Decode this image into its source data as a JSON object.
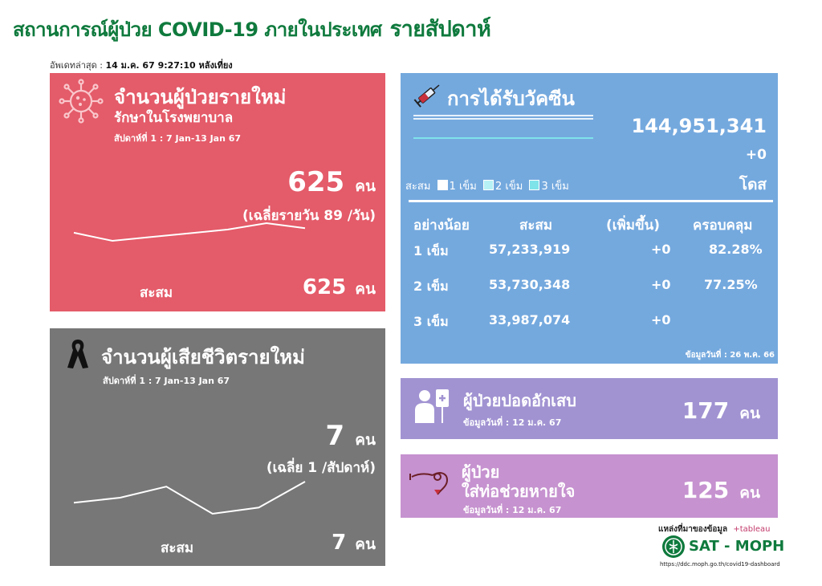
{
  "header": {
    "title": "สถานการณ์ผู้ป่วย COVID-19 ภายในประเทศ",
    "title_suffix": "รายสัปดาห์",
    "updated_label": "อัพเดทล่าสุด :",
    "updated_value": "14 ม.ค. 67 9:27:10 หลังเที่ยง"
  },
  "new_cases": {
    "title": "จำนวนผู้ป่วยรายใหม่",
    "subtitle": "รักษาในโรงพยาบาล",
    "week": "สัปดาห์ที่ 1 : 7 Jan-13 Jan 67",
    "count": "625",
    "unit": "คน",
    "average": "(เฉลี่ยรายวัน 89 /วัน)",
    "cumulative_label": "สะสม",
    "cumulative": "625",
    "cumulative_unit": "คน",
    "trend": [
      0.62,
      0.3,
      0.45,
      0.6,
      0.75,
      1.0,
      0.8
    ]
  },
  "deaths": {
    "title": "จำนวนผู้เสียชีวิตรายใหม่",
    "week": "สัปดาห์ที่ 1 : 7 Jan-13 Jan 67",
    "count": "7",
    "unit": "คน",
    "average": "(เฉลี่ย 1 /สัปดาห์)",
    "cumulative_label": "สะสม",
    "cumulative": "7",
    "cumulative_unit": "คน",
    "trend": [
      0.0,
      0.2,
      0.65,
      -0.45,
      -0.2,
      0.85
    ]
  },
  "vaccine": {
    "title": "การได้รับวัคซีน",
    "total": "144,951,341",
    "delta": "+0",
    "unit": "โดส",
    "legend_label": "สะสม",
    "legend": [
      {
        "label": "1 เข็ม",
        "color": "#ffffff"
      },
      {
        "label": "2 เข็ม",
        "color": "#b6f1f5"
      },
      {
        "label": "3 เข็ม",
        "color": "#7fe3ea"
      }
    ],
    "columns": [
      "อย่างน้อย",
      "สะสม",
      "(เพิ่มขึ้น)",
      "ครอบคลุม"
    ],
    "rows": [
      {
        "dose": "1 เข็ม",
        "total": "57,233,919",
        "delta": "+0",
        "coverage": "82.28%"
      },
      {
        "dose": "2 เข็ม",
        "total": "53,730,348",
        "delta": "+0",
        "coverage": "77.25%"
      },
      {
        "dose": "3 เข็ม",
        "total": "33,987,074",
        "delta": "+0",
        "coverage": ""
      }
    ],
    "data_date": "ข้อมูลวันที่ : 26 พ.ค. 66"
  },
  "pneumonia": {
    "title": "ผู้ป่วยปอดอักเสบ",
    "data_date": "ข้อมูลวันที่ : 12 ม.ค. 67",
    "count": "177",
    "unit": "คน"
  },
  "ventilator": {
    "title_1": "ผู้ป่วย",
    "title_2": "ใส่ท่อช่วยหายใจ",
    "data_date": "ข้อมูลวันที่ : 12 ม.ค. 67",
    "count": "125",
    "unit": "คน"
  },
  "footer": {
    "source_label": "แหล่งที่มาของข้อมูล",
    "tableau": "+tableau",
    "org": "SAT - MOPH",
    "url": "https://ddc.moph.go.th/covid19-dashboard"
  },
  "colors": {
    "new_cases": "#e45b69",
    "deaths": "#777777",
    "vaccine": "#74a9de",
    "pneumonia": "#a193d2",
    "ventilator": "#c692cf",
    "brand_green": "#0f7a3d"
  },
  "icons": [
    "virus-icon",
    "ribbon-icon",
    "syringe-icon",
    "patient-icon",
    "ventilator-icon",
    "moph-logo-icon"
  ]
}
